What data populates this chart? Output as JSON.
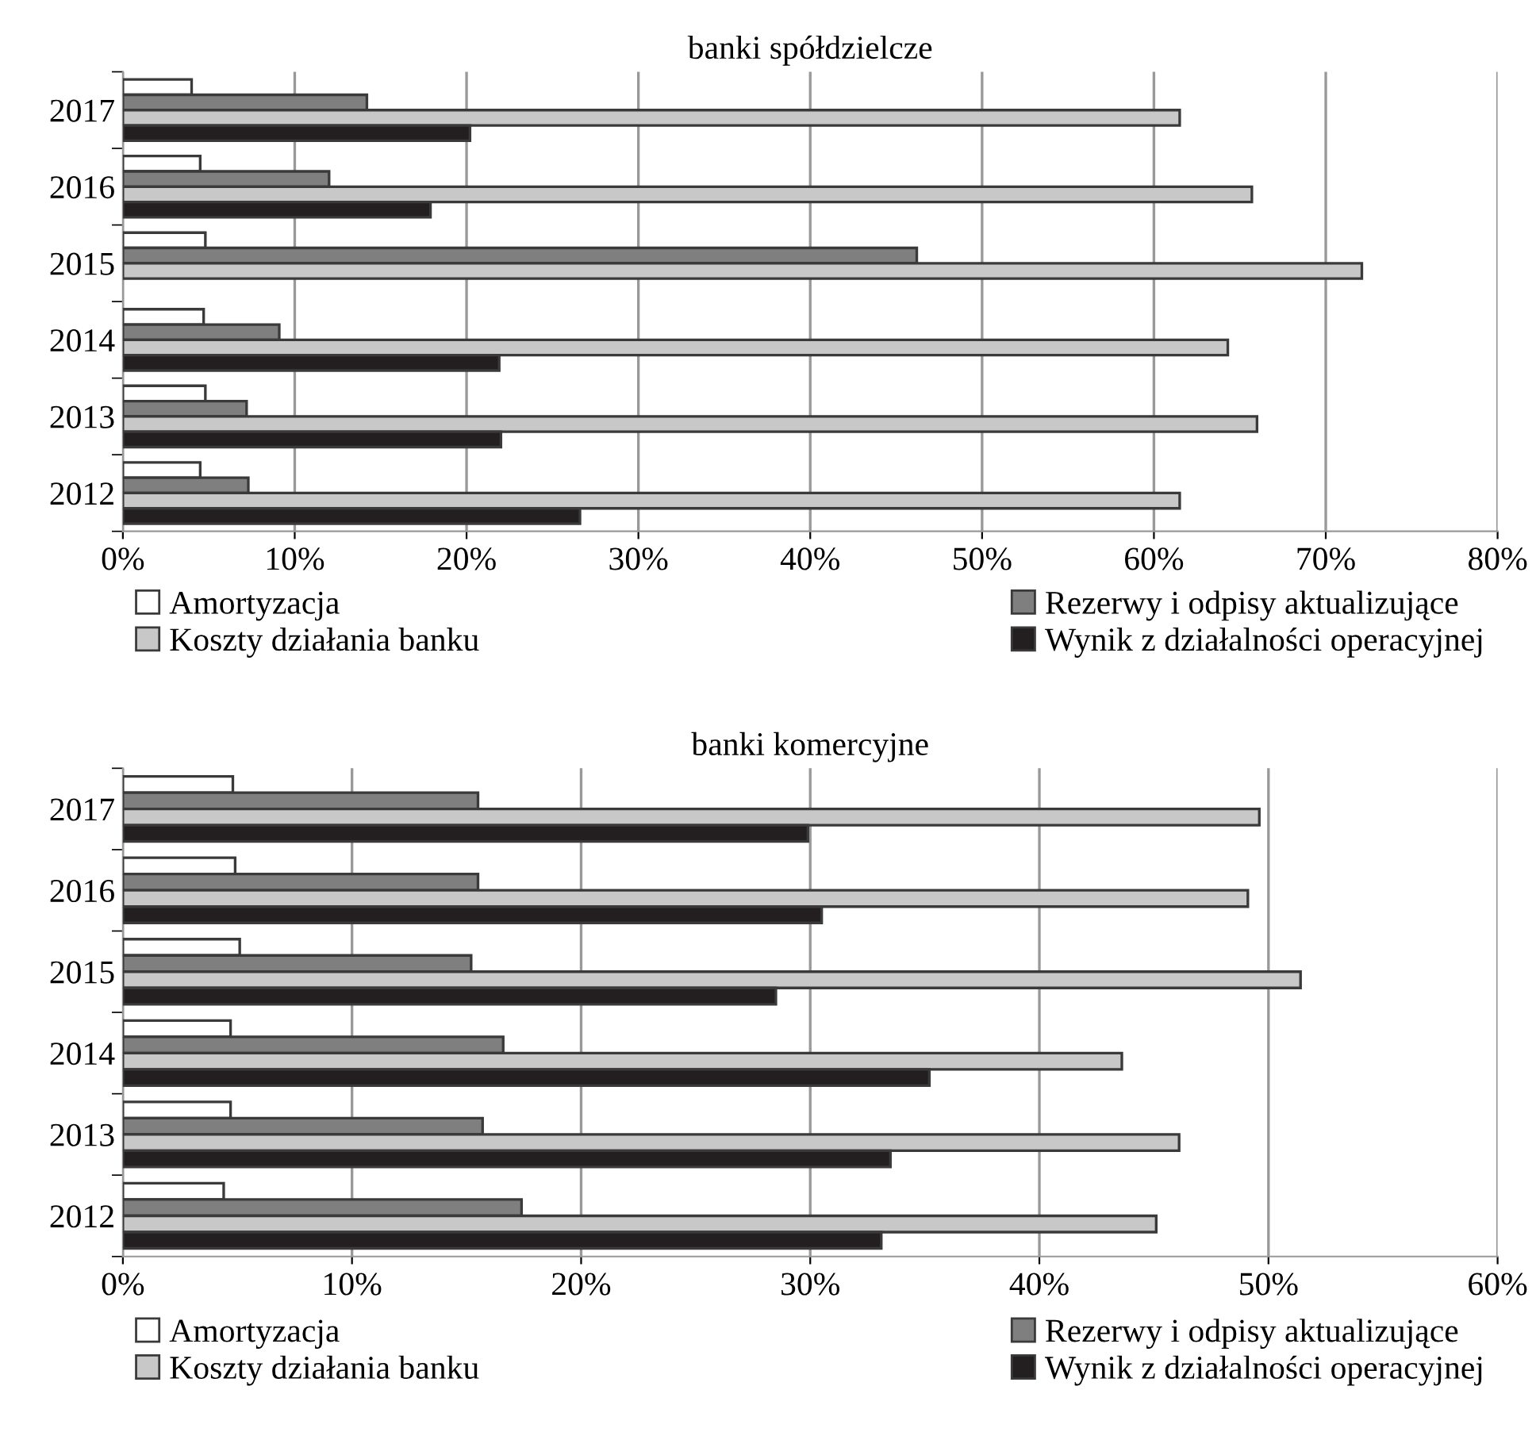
{
  "chart_data": [
    {
      "type": "bar",
      "orientation": "horizontal",
      "title": "banki spółdzielcze",
      "categories": [
        "2017",
        "2016",
        "2015",
        "2014",
        "2013",
        "2012"
      ],
      "series": [
        {
          "name": "Amortyzacja",
          "color": "#ffffff",
          "values": [
            4.0,
            4.5,
            4.8,
            4.7,
            4.8,
            4.5
          ]
        },
        {
          "name": "Rezerwy i odpisy aktualizujące",
          "color": "#7f7f7f",
          "values": [
            14.2,
            12.0,
            46.2,
            9.1,
            7.2,
            7.3
          ]
        },
        {
          "name": "Koszty działania banku",
          "color": "#c8c8c8",
          "values": [
            61.5,
            65.7,
            72.1,
            64.3,
            66.0,
            61.5
          ]
        },
        {
          "name": "Wynik z działalności operacyjnej",
          "color": "#231f20",
          "values": [
            20.2,
            17.9,
            null,
            21.9,
            22.0,
            26.6
          ]
        }
      ],
      "xlim": [
        0,
        80
      ],
      "xticks": [
        {
          "value": 0,
          "label": "0%"
        },
        {
          "value": 10,
          "label": "10%"
        },
        {
          "value": 20,
          "label": "20%"
        },
        {
          "value": 30,
          "label": "30%"
        },
        {
          "value": 40,
          "label": "40%"
        },
        {
          "value": 50,
          "label": "50%"
        },
        {
          "value": 60,
          "label": "60%"
        },
        {
          "value": 70,
          "label": "70%"
        },
        {
          "value": 80,
          "label": "80%"
        }
      ],
      "grid": "x",
      "legend": "bottom"
    },
    {
      "type": "bar",
      "orientation": "horizontal",
      "title": "banki komercyjne",
      "categories": [
        "2017",
        "2016",
        "2015",
        "2014",
        "2013",
        "2012"
      ],
      "series": [
        {
          "name": "Amortyzacja",
          "color": "#ffffff",
          "values": [
            4.8,
            4.9,
            5.1,
            4.7,
            4.7,
            4.4
          ]
        },
        {
          "name": "Rezerwy i odpisy aktualizujące",
          "color": "#7f7f7f",
          "values": [
            15.5,
            15.5,
            15.2,
            16.6,
            15.7,
            17.4
          ]
        },
        {
          "name": "Koszty działania banku",
          "color": "#c8c8c8",
          "values": [
            49.6,
            49.1,
            51.4,
            43.6,
            46.1,
            45.1
          ]
        },
        {
          "name": "Wynik z działalności operacyjnej",
          "color": "#231f20",
          "values": [
            29.9,
            30.5,
            28.5,
            35.2,
            33.5,
            33.1
          ]
        }
      ],
      "xlim": [
        0,
        60
      ],
      "xticks": [
        {
          "value": 0,
          "label": "0%"
        },
        {
          "value": 10,
          "label": "10%"
        },
        {
          "value": 20,
          "label": "20%"
        },
        {
          "value": 30,
          "label": "30%"
        },
        {
          "value": 40,
          "label": "40%"
        },
        {
          "value": 50,
          "label": "50%"
        },
        {
          "value": 60,
          "label": "60%"
        }
      ],
      "grid": "x",
      "legend": "bottom"
    }
  ]
}
